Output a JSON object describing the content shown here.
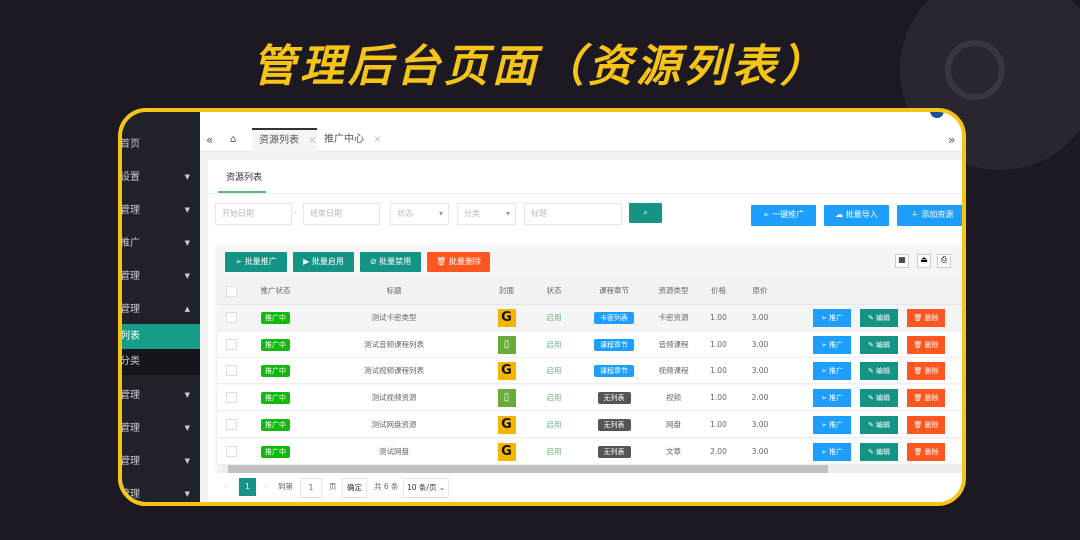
{
  "banner": {
    "title": "管理后台页面（资源列表）"
  },
  "sidebar": {
    "items": [
      {
        "label": "首页",
        "caret": false
      },
      {
        "label": "设置",
        "caret": true
      },
      {
        "label": "管理",
        "caret": true
      },
      {
        "label": "推广",
        "caret": true
      },
      {
        "label": "管理",
        "caret": true
      },
      {
        "label": "管理",
        "caret": "up"
      },
      {
        "label": "列表",
        "sub": true,
        "active": true
      },
      {
        "label": "分类",
        "sub": true
      },
      {
        "label": "管理",
        "caret": true
      },
      {
        "label": "管理",
        "caret": true
      },
      {
        "label": "管理",
        "caret": true
      },
      {
        "label": "管理",
        "caret": true
      }
    ]
  },
  "tabs": {
    "items": [
      {
        "label": "资源列表",
        "active": true
      },
      {
        "label": "推广中心"
      }
    ],
    "close": "×"
  },
  "panel": {
    "title": "资源列表"
  },
  "filters": {
    "start_date": "开始日期",
    "sep": "-",
    "end_date": "结束日期",
    "status": "状态",
    "category": "分类",
    "title": "标题"
  },
  "actions": {
    "promote_all": "一键推广",
    "import": "批量导入",
    "add": "添加资源"
  },
  "batch": {
    "promote": "批量推广",
    "enable": "批量启用",
    "disable": "批量禁用",
    "delete": "批量删除"
  },
  "table": {
    "headers": [
      "推广状态",
      "标题",
      "封面",
      "状态",
      "课程章节",
      "资源类型",
      "价格",
      "原价"
    ],
    "rows": [
      {
        "promo": "推广中",
        "title": "测试卡密类型",
        "cover": "G",
        "status": "启用",
        "chapter": "卡密列表",
        "chapter_kind": "blue",
        "type": "卡密资源",
        "price": "1.00",
        "orig": "3.00"
      },
      {
        "promo": "推广中",
        "title": "测试音频课程列表",
        "cover": "doc",
        "status": "启用",
        "chapter": "课程章节",
        "chapter_kind": "blue",
        "type": "音频课程",
        "price": "1.00",
        "orig": "3.00"
      },
      {
        "promo": "推广中",
        "title": "测试视频课程列表",
        "cover": "G",
        "status": "启用",
        "chapter": "课程章节",
        "chapter_kind": "blue",
        "type": "视频课程",
        "price": "1.00",
        "orig": "3.00"
      },
      {
        "promo": "推广中",
        "title": "测试视频资源",
        "cover": "doc",
        "status": "启用",
        "chapter": "无列表",
        "chapter_kind": "gray",
        "type": "视频",
        "price": "1.00",
        "orig": "2.00"
      },
      {
        "promo": "推广中",
        "title": "测试网盘资源",
        "cover": "G",
        "status": "启用",
        "chapter": "无列表",
        "chapter_kind": "gray",
        "type": "网盘",
        "price": "1.00",
        "orig": "3.00"
      },
      {
        "promo": "推广中",
        "title": "测试网盘",
        "cover": "G",
        "status": "启用",
        "chapter": "无列表",
        "chapter_kind": "gray",
        "type": "文章",
        "price": "2.00",
        "orig": "3.00"
      }
    ],
    "row_actions": {
      "promote": "推广",
      "edit": "编辑",
      "delete": "删除"
    }
  },
  "pagination": {
    "current": "1",
    "goto": "到第",
    "page_input": "1",
    "page_unit": "页",
    "confirm": "确定",
    "total": "共 6 条",
    "page_size": "10 条/页"
  },
  "colors": {
    "accent": "#159385",
    "blue": "#1e9fff",
    "orange": "#ff5722",
    "promo_green": "#13b90f",
    "frame": "#f6c417"
  }
}
